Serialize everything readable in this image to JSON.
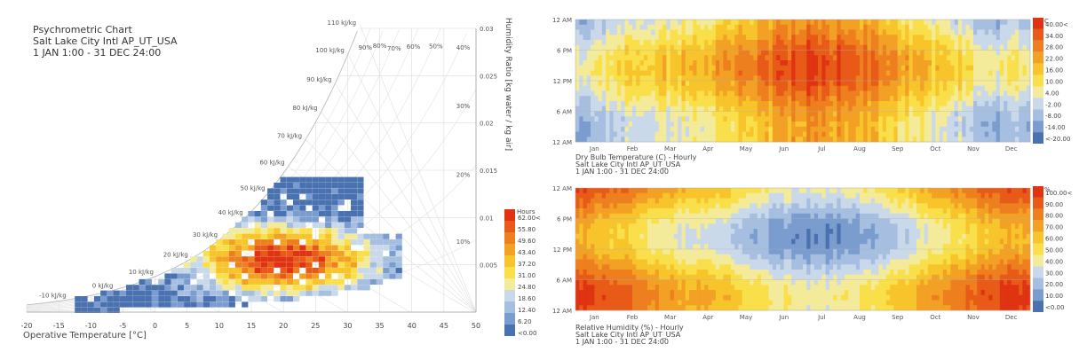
{
  "colors": {
    "scale": [
      "#4a72b0",
      "#7a9ccf",
      "#a6bfe0",
      "#c9d9ea",
      "#f3ea9a",
      "#f9e04a",
      "#f7c42b",
      "#f2a124",
      "#ee7f1e",
      "#e85a17",
      "#e03312"
    ]
  },
  "chart_data": [
    {
      "type": "scatter",
      "subtype": "psychrometric-heatmap",
      "title_lines": [
        "Psychrometric Chart",
        "Salt Lake City Intl AP_UT_USA",
        "1 JAN 1:00 - 31 DEC 24:00"
      ],
      "xlabel": "Operative Temperature [°C]",
      "ylabel": "Humidity Ratio [kg water / kg air]",
      "xlim": [
        -20,
        50
      ],
      "ylim": [
        0,
        0.03
      ],
      "x_ticks": [
        "-20",
        "-15",
        "-10",
        "-5",
        "0",
        "5",
        "10",
        "15",
        "20",
        "25",
        "30",
        "35",
        "40",
        "45",
        "50"
      ],
      "y_ticks": [
        {
          "value": 0.005,
          "label": "0.005"
        },
        {
          "value": 0.01,
          "label": "0.01"
        },
        {
          "value": 0.015,
          "label": "0.015"
        },
        {
          "value": 0.02,
          "label": "0.02"
        },
        {
          "value": 0.025,
          "label": "0.025"
        },
        {
          "value": 0.03,
          "label": "0.03"
        }
      ],
      "rh_labels": [
        "90%",
        "80%",
        "70%",
        "60%",
        "50%",
        "40%",
        "30%",
        "20%",
        "10%"
      ],
      "rh_values": [
        90,
        80,
        70,
        60,
        50,
        40,
        30,
        20,
        10
      ],
      "enthalpy_labels": [
        "110 kJ/kg",
        "100 kJ/kg",
        "90 kJ/kg",
        "80 kJ/kg",
        "70 kJ/kg",
        "60 kJ/kg",
        "50 kJ/kg",
        "40 kJ/kg",
        "30 kJ/kg",
        "20 kJ/kg",
        "10 kJ/kg",
        "0 kJ/kg",
        "-10 kJ/kg"
      ],
      "enthalpy_values": [
        110,
        100,
        90,
        80,
        70,
        60,
        50,
        40,
        30,
        20,
        10,
        0,
        -10
      ],
      "legend": {
        "title": "Hours",
        "labels": [
          "62.00<",
          "55.80",
          "49.60",
          "43.40",
          "37.20",
          "31.00",
          "24.80",
          "18.60",
          "12.40",
          "6.20",
          "<0.00"
        ]
      }
    },
    {
      "type": "heatmap",
      "title_lines": [
        "Dry Bulb Temperature (C) - Hourly",
        "Salt Lake City Intl AP_UT_USA",
        "1 JAN 1:00 - 31 DEC 24:00"
      ],
      "x_ticks": [
        "Jan",
        "Feb",
        "Mar",
        "Apr",
        "May",
        "Jun",
        "Jul",
        "Aug",
        "Sep",
        "Oct",
        "Nov",
        "Dec"
      ],
      "y_ticks": [
        "12 AM",
        "6 PM",
        "12 PM",
        "6 AM",
        "12 AM"
      ],
      "legend": {
        "title": "C",
        "labels": [
          "40.00<",
          "34.00",
          "28.00",
          "22.00",
          "16.00",
          "10.00",
          "4.00",
          "-2.00",
          "-8.00",
          "-14.00",
          "<-20.00"
        ]
      },
      "monthly_mean": [
        -1,
        2,
        8,
        11,
        16,
        23,
        29,
        27,
        21,
        12,
        5,
        -1
      ],
      "daily_amplitude": 7
    },
    {
      "type": "heatmap",
      "title_lines": [
        "Relative Humidity (%) - Hourly",
        "Salt Lake City Intl AP_UT_USA",
        "1 JAN 1:00 - 31 DEC 24:00"
      ],
      "x_ticks": [
        "Jan",
        "Feb",
        "Mar",
        "Apr",
        "May",
        "Jun",
        "Jul",
        "Aug",
        "Sep",
        "Oct",
        "Nov",
        "Dec"
      ],
      "y_ticks": [
        "12 AM",
        "6 PM",
        "12 PM",
        "6 AM",
        "12 AM"
      ],
      "legend": {
        "title": "%",
        "labels": [
          "100.00<",
          "90.00",
          "80.00",
          "70.00",
          "60.00",
          "50.00",
          "40.00",
          "30.00",
          "20.00",
          "10.00",
          "<0.00"
        ]
      },
      "monthly_mean": [
        78,
        72,
        58,
        50,
        44,
        32,
        25,
        27,
        35,
        50,
        64,
        76
      ],
      "daily_amplitude": 16
    }
  ]
}
